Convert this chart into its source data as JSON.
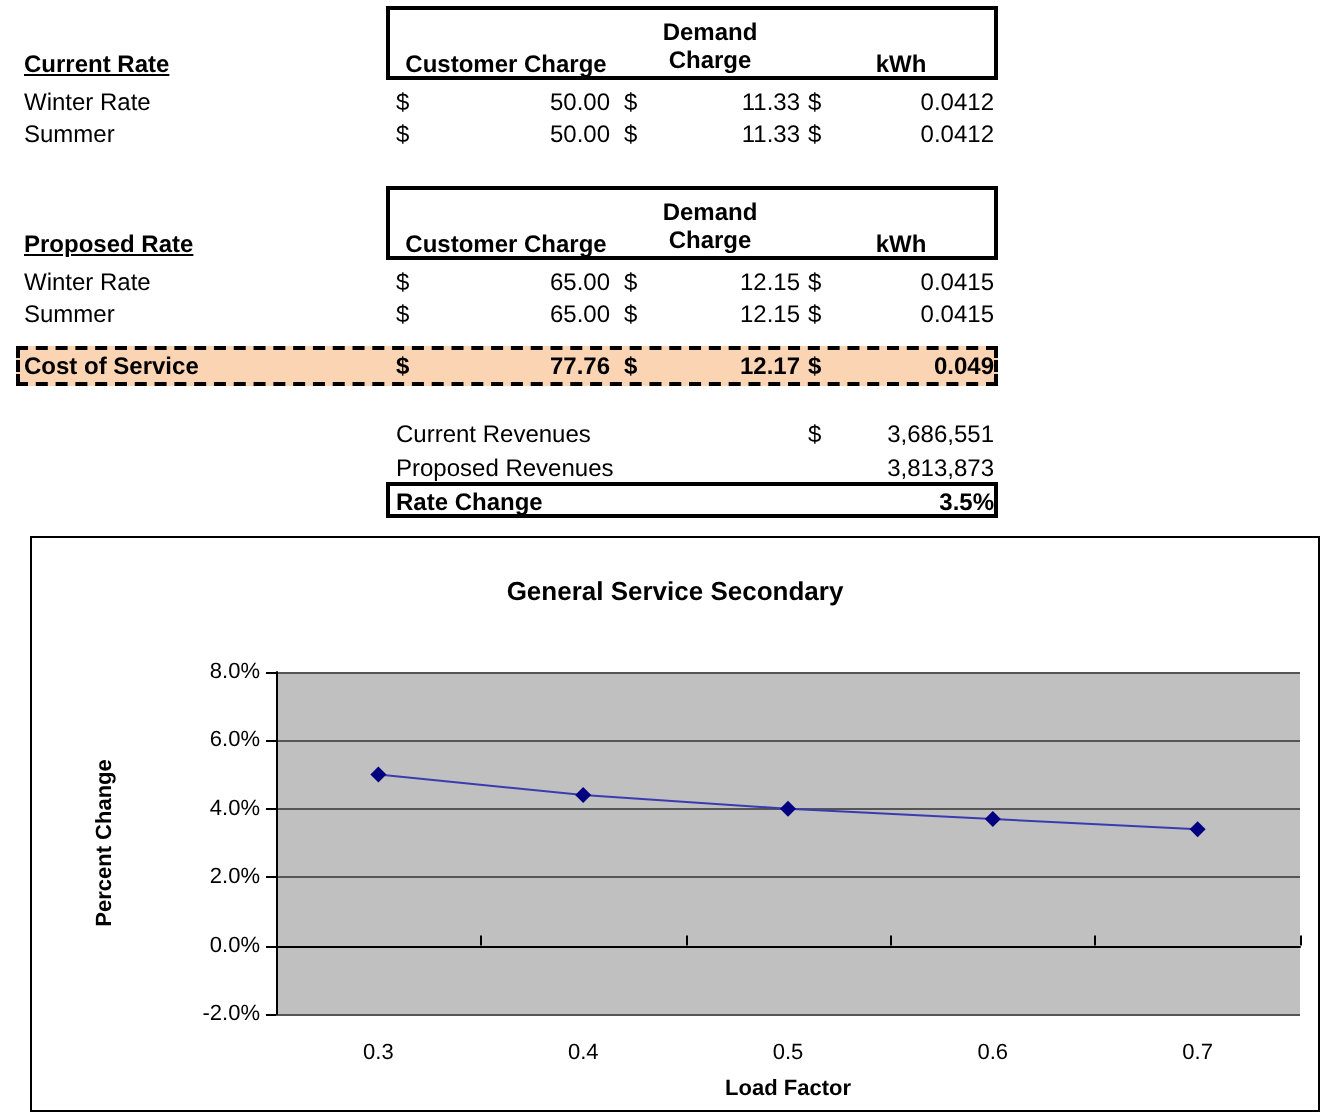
{
  "chart_data": {
    "type": "line",
    "title": "General Service Secondary",
    "xlabel": "Load Factor",
    "ylabel": "Percent Change",
    "categories": [
      "0.3",
      "0.4",
      "0.5",
      "0.6",
      "0.7"
    ],
    "series": [
      {
        "color": "#000080",
        "values": [
          5.0,
          4.4,
          4.0,
          3.7,
          3.4
        ]
      }
    ],
    "ylim": [
      -2,
      8
    ],
    "yticks": [
      {
        "value": -2,
        "label": "-2.0%"
      },
      {
        "value": 0,
        "label": "0.0%"
      },
      {
        "value": 2,
        "label": "2.0%"
      },
      {
        "value": 4,
        "label": "4.0%"
      },
      {
        "value": 6,
        "label": "6.0%"
      },
      {
        "value": 8,
        "label": "8.0%"
      }
    ],
    "grid": "y",
    "marker": "diamond",
    "line_style": "solid",
    "annotations": [
      "Current Rate",
      "Customer Charge",
      "Demand Charge",
      "kWh",
      "Winter Rate",
      "$",
      "50.00",
      "$",
      "11.33",
      "$",
      "0.0412",
      "Summer",
      "$",
      "50.00",
      "$",
      "11.33",
      "$",
      "0.0412",
      "Proposed Rate",
      "Customer Charge",
      "Demand Charge",
      "kWh",
      "Winter Rate",
      "$",
      "65.00",
      "$",
      "12.15",
      "$",
      "0.0415",
      "Summer",
      "$",
      "65.00",
      "$",
      "12.15",
      "$",
      "0.0415",
      "Cost of Service",
      "$",
      "77.76",
      "$",
      "12.17",
      "$",
      "0.049",
      "Current Revenues",
      "$",
      "3,686,551",
      "Proposed Revenues",
      "3,813,873",
      "Rate Change",
      "3.5%"
    ]
  }
}
